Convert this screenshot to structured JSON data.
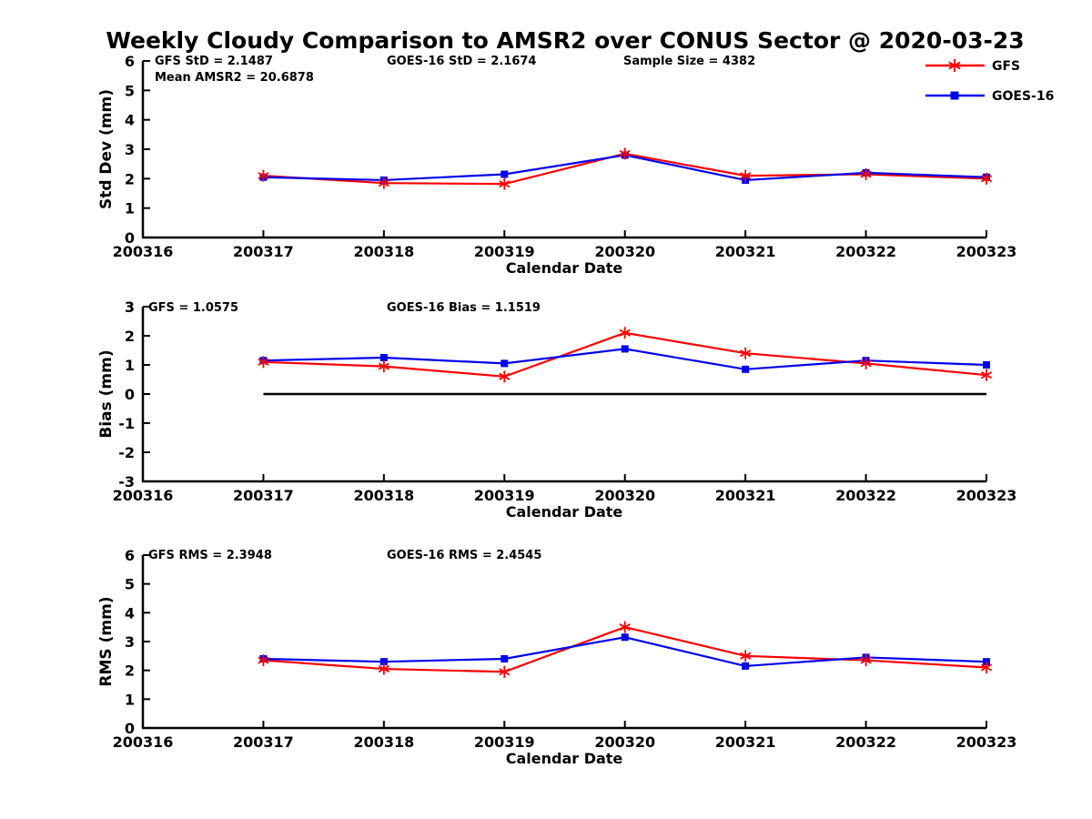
{
  "title": "Weekly Cloudy Comparison to AMSR2 over CONUS Sector @ 2020-03-23",
  "colors": {
    "gfs": "#ff0000",
    "goes16": "#0000ee",
    "axis": "#000000",
    "zero_line": "#000000"
  },
  "legend": {
    "entries": [
      {
        "label": "GFS",
        "color": "#ff0000",
        "marker": "asterisk"
      },
      {
        "label": "GOES-16",
        "color": "#0000ee",
        "marker": "square"
      }
    ]
  },
  "x_axis": {
    "label": "Calendar Date",
    "ticks": [
      "200316",
      "200317",
      "200318",
      "200319",
      "200320",
      "200321",
      "200322",
      "200323"
    ]
  },
  "chart_data": [
    {
      "type": "line",
      "ylabel": "Std Dev (mm)",
      "ylim": [
        0,
        6
      ],
      "y_ticks": [
        0,
        1,
        2,
        3,
        4,
        5,
        6
      ],
      "x": [
        "200317",
        "200318",
        "200319",
        "200320",
        "200321",
        "200322",
        "200323"
      ],
      "series": [
        {
          "name": "GFS",
          "color": "#ff0000",
          "marker": "asterisk",
          "values": [
            2.1,
            1.85,
            1.82,
            2.85,
            2.1,
            2.15,
            2.0
          ]
        },
        {
          "name": "GOES-16",
          "color": "#0000ee",
          "marker": "square",
          "values": [
            2.05,
            1.95,
            2.15,
            2.8,
            1.95,
            2.2,
            2.05
          ]
        }
      ],
      "annotations": [
        "GFS StD = 2.1487",
        "Mean AMSR2 = 20.6878",
        "GOES-16 StD = 2.1674",
        "Sample Size = 4382"
      ],
      "zero_line": false
    },
    {
      "type": "line",
      "ylabel": "Bias (mm)",
      "ylim": [
        -3,
        3
      ],
      "y_ticks": [
        -3,
        -2,
        -1,
        0,
        1,
        2,
        3
      ],
      "x": [
        "200317",
        "200318",
        "200319",
        "200320",
        "200321",
        "200322",
        "200323"
      ],
      "series": [
        {
          "name": "GFS",
          "color": "#ff0000",
          "marker": "asterisk",
          "values": [
            1.1,
            0.95,
            0.6,
            2.1,
            1.4,
            1.05,
            0.65
          ]
        },
        {
          "name": "GOES-16",
          "color": "#0000ee",
          "marker": "square",
          "values": [
            1.15,
            1.25,
            1.05,
            1.55,
            0.85,
            1.15,
            1.0
          ]
        }
      ],
      "annotations": [
        "GFS = 1.0575",
        "GOES-16 Bias  = 1.1519"
      ],
      "zero_line": true
    },
    {
      "type": "line",
      "ylabel": "RMS (mm)",
      "ylim": [
        0,
        6
      ],
      "y_ticks": [
        0,
        1,
        2,
        3,
        4,
        5,
        6
      ],
      "x": [
        "200317",
        "200318",
        "200319",
        "200320",
        "200321",
        "200322",
        "200323"
      ],
      "series": [
        {
          "name": "GFS",
          "color": "#ff0000",
          "marker": "asterisk",
          "values": [
            2.35,
            2.05,
            1.95,
            3.5,
            2.5,
            2.35,
            2.1
          ]
        },
        {
          "name": "GOES-16",
          "color": "#0000ee",
          "marker": "square",
          "values": [
            2.4,
            2.3,
            2.4,
            3.15,
            2.15,
            2.45,
            2.3
          ]
        }
      ],
      "annotations": [
        "GFS RMS = 2.3948",
        "GOES-16 RMS = 2.4545"
      ],
      "zero_line": false
    }
  ]
}
